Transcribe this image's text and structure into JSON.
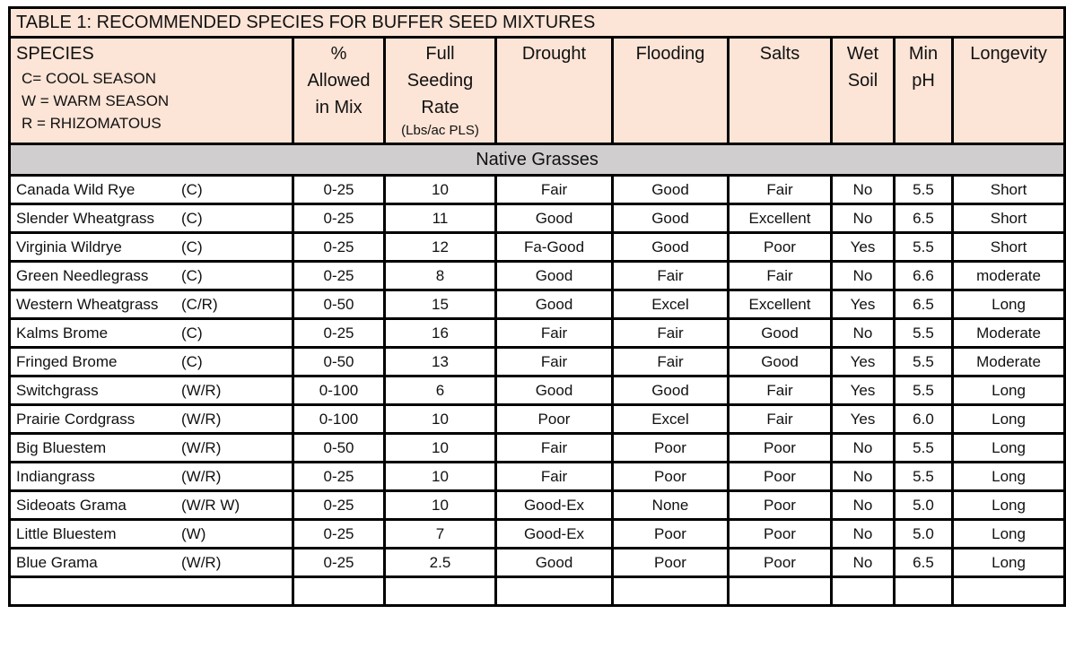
{
  "title": "TABLE 1: RECOMMENDED SPECIES FOR BUFFER SEED MIXTURES",
  "header": {
    "species": "SPECIES",
    "legend": [
      "C= COOL SEASON",
      "W = WARM SEASON",
      "R = RHIZOMATOUS"
    ],
    "pct_lines": [
      "%",
      "Allowed",
      "in Mix"
    ],
    "rate_lines": [
      "Full",
      "Seeding",
      "Rate"
    ],
    "rate_unit": "(Lbs/ac PLS)",
    "drought": "Drought",
    "flooding": "Flooding",
    "salts": "Salts",
    "wet_lines": [
      "Wet",
      "Soil"
    ],
    "ph_lines": [
      "Min",
      "pH"
    ],
    "longevity": "Longevity"
  },
  "section": "Native Grasses",
  "rows": [
    {
      "name": "Canada Wild Rye",
      "code": "(C)",
      "pct": "0-25",
      "rate": "10",
      "drought": "Fair",
      "flooding": "Good",
      "salts": "Fair",
      "wet": "No",
      "ph": "5.5",
      "longevity": "Short"
    },
    {
      "name": "Slender Wheatgrass",
      "code": "(C)",
      "pct": "0-25",
      "rate": "11",
      "drought": "Good",
      "flooding": "Good",
      "salts": "Excellent",
      "wet": "No",
      "ph": "6.5",
      "longevity": "Short"
    },
    {
      "name": "Virginia Wildrye",
      "code": "(C)",
      "pct": "0-25",
      "rate": "12",
      "drought": "Fa-Good",
      "flooding": "Good",
      "salts": "Poor",
      "wet": "Yes",
      "ph": "5.5",
      "longevity": "Short"
    },
    {
      "name": "Green Needlegrass",
      "code": "(C)",
      "pct": "0-25",
      "rate": "8",
      "drought": "Good",
      "flooding": "Fair",
      "salts": "Fair",
      "wet": "No",
      "ph": "6.6",
      "longevity": "moderate"
    },
    {
      "name": "Western Wheatgrass",
      "code": "(C/R)",
      "pct": "0-50",
      "rate": "15",
      "drought": "Good",
      "flooding": "Excel",
      "salts": "Excellent",
      "wet": "Yes",
      "ph": "6.5",
      "longevity": "Long"
    },
    {
      "name": "Kalms Brome",
      "code": "(C)",
      "pct": "0-25",
      "rate": "16",
      "drought": "Fair",
      "flooding": "Fair",
      "salts": "Good",
      "wet": "No",
      "ph": "5.5",
      "longevity": "Moderate"
    },
    {
      "name": "Fringed Brome",
      "code": "(C)",
      "pct": "0-50",
      "rate": "13",
      "drought": "Fair",
      "flooding": "Fair",
      "salts": "Good",
      "wet": "Yes",
      "ph": "5.5",
      "longevity": "Moderate"
    },
    {
      "name": "Switchgrass",
      "code": "(W/R)",
      "pct": "0-100",
      "rate": "6",
      "drought": "Good",
      "flooding": "Good",
      "salts": "Fair",
      "wet": "Yes",
      "ph": "5.5",
      "longevity": "Long"
    },
    {
      "name": "Prairie Cordgrass",
      "code": "(W/R)",
      "pct": "0-100",
      "rate": "10",
      "drought": "Poor",
      "flooding": "Excel",
      "salts": "Fair",
      "wet": "Yes",
      "ph": "6.0",
      "longevity": "Long"
    },
    {
      "name": "Big Bluestem",
      "code": "(W/R)",
      "pct": "0-50",
      "rate": "10",
      "drought": "Fair",
      "flooding": "Poor",
      "salts": "Poor",
      "wet": "No",
      "ph": "5.5",
      "longevity": "Long"
    },
    {
      "name": "Indiangrass",
      "code": "(W/R)",
      "pct": "0-25",
      "rate": "10",
      "drought": "Fair",
      "flooding": "Poor",
      "salts": "Poor",
      "wet": "No",
      "ph": "5.5",
      "longevity": "Long"
    },
    {
      "name": "Sideoats Grama",
      "code": "(W/R  W)",
      "pct": "0-25",
      "rate": "10",
      "drought": "Good-Ex",
      "flooding": "None",
      "salts": "Poor",
      "wet": "No",
      "ph": "5.0",
      "longevity": "Long"
    },
    {
      "name": "Little Bluestem",
      "code": "(W)",
      "pct": "0-25",
      "rate": "7",
      "drought": "Good-Ex",
      "flooding": "Poor",
      "salts": "Poor",
      "wet": "No",
      "ph": "5.0",
      "longevity": "Long"
    },
    {
      "name": "Blue Grama",
      "code": "(W/R)",
      "pct": "0-25",
      "rate": "2.5",
      "drought": "Good",
      "flooding": "Poor",
      "salts": "Poor",
      "wet": "No",
      "ph": "6.5",
      "longevity": "Long"
    }
  ],
  "colors": {
    "header_bg": "#fce4d6",
    "section_bg": "#d0cece",
    "border": "#000000"
  }
}
